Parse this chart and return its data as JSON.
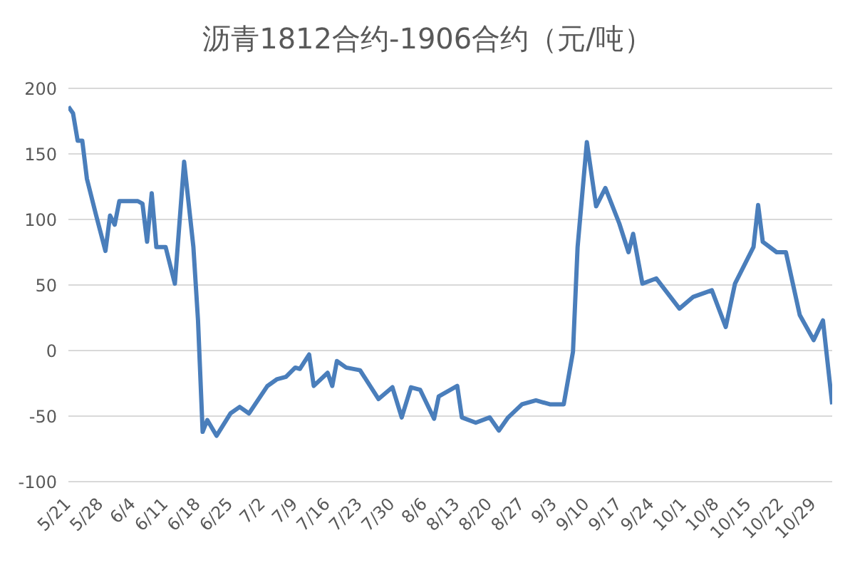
{
  "chart_data": {
    "type": "line",
    "title": "沥青1812合约-1906合约（元/吨）",
    "x": [
      "--05-21",
      "--05-22",
      "--05-23",
      "--05-24",
      "--05-25",
      "--05-27",
      "--05-29",
      "--05-30",
      "--05-31",
      "--06-01",
      "--06-05",
      "--06-06",
      "--06-07",
      "--06-08",
      "--06-09",
      "--06-11",
      "--06-12",
      "--06-13",
      "--06-15",
      "--06-17",
      "--06-18",
      "--06-19",
      "--06-20",
      "--06-22",
      "--06-25",
      "--06-27",
      "--06-29",
      "--07-03",
      "--07-05",
      "--07-07",
      "--07-09",
      "--07-10",
      "--07-12",
      "--07-13",
      "--07-16",
      "--07-17",
      "--07-18",
      "--07-20",
      "--07-23",
      "--07-27",
      "--07-30",
      "--08-01",
      "--08-03",
      "--08-05",
      "--08-08",
      "--08-09",
      "--08-13",
      "--08-14",
      "--08-17",
      "--08-20",
      "--08-22",
      "--08-24",
      "--08-27",
      "--08-30",
      "--09-02",
      "--09-05",
      "--09-07",
      "--09-08",
      "--09-10",
      "--09-12",
      "--09-14",
      "--09-17",
      "--09-19",
      "--09-20",
      "--09-22",
      "--09-25",
      "--09-30",
      "--10-03",
      "--10-07",
      "--10-10",
      "--10-12",
      "--10-16",
      "--10-17",
      "--10-18",
      "--10-21",
      "--10-23",
      "--10-26",
      "--10-29",
      "--10-31",
      "--11-02"
    ],
    "series": [
      {
        "color": "#4a7ebb",
        "values": [
          186,
          181,
          160,
          160,
          131,
          103,
          76,
          103,
          96,
          114,
          114,
          112,
          83,
          120,
          79,
          79,
          65,
          51,
          144,
          79,
          23,
          -62,
          -53,
          -65,
          -48,
          -43,
          -48,
          -27,
          -22,
          -20,
          -13,
          -14,
          -3,
          -27,
          -17,
          -27,
          -8,
          -13,
          -15,
          -37,
          -28,
          -51,
          -28,
          -30,
          -52,
          -35,
          -27,
          -51,
          -55,
          -51,
          -61,
          -51,
          -41,
          -38,
          -41,
          -41,
          -1,
          79,
          159,
          110,
          124,
          97,
          75,
          89,
          51,
          55,
          32,
          41,
          46,
          18,
          51,
          79,
          111,
          83,
          75,
          75,
          27,
          8,
          23,
          -41
        ]
      }
    ],
    "xlim": [
      "--05-21",
      "--11-02"
    ],
    "xticks": [
      {
        "value": "--05-21",
        "label": "5/21"
      },
      {
        "value": "--05-28",
        "label": "5/28"
      },
      {
        "value": "--06-04",
        "label": "6/4"
      },
      {
        "value": "--06-11",
        "label": "6/11"
      },
      {
        "value": "--06-18",
        "label": "6/18"
      },
      {
        "value": "--06-25",
        "label": "6/25"
      },
      {
        "value": "--07-02",
        "label": "7/2"
      },
      {
        "value": "--07-09",
        "label": "7/9"
      },
      {
        "value": "--07-16",
        "label": "7/16"
      },
      {
        "value": "--07-23",
        "label": "7/23"
      },
      {
        "value": "--07-30",
        "label": "7/30"
      },
      {
        "value": "--08-06",
        "label": "8/6"
      },
      {
        "value": "--08-13",
        "label": "8/13"
      },
      {
        "value": "--08-20",
        "label": "8/20"
      },
      {
        "value": "--08-27",
        "label": "8/27"
      },
      {
        "value": "--09-03",
        "label": "9/3"
      },
      {
        "value": "--09-10",
        "label": "9/10"
      },
      {
        "value": "--09-17",
        "label": "9/17"
      },
      {
        "value": "--09-24",
        "label": "9/24"
      },
      {
        "value": "--10-01",
        "label": "10/1"
      },
      {
        "value": "--10-08",
        "label": "10/8"
      },
      {
        "value": "--10-15",
        "label": "10/15"
      },
      {
        "value": "--10-22",
        "label": "10/22"
      },
      {
        "value": "--10-29",
        "label": "10/29"
      }
    ],
    "ylim": [
      -100,
      200
    ],
    "yticks": [
      -100,
      -50,
      0,
      50,
      100,
      150,
      200
    ],
    "grid": "y",
    "marker": "none",
    "line_style": "solid"
  }
}
